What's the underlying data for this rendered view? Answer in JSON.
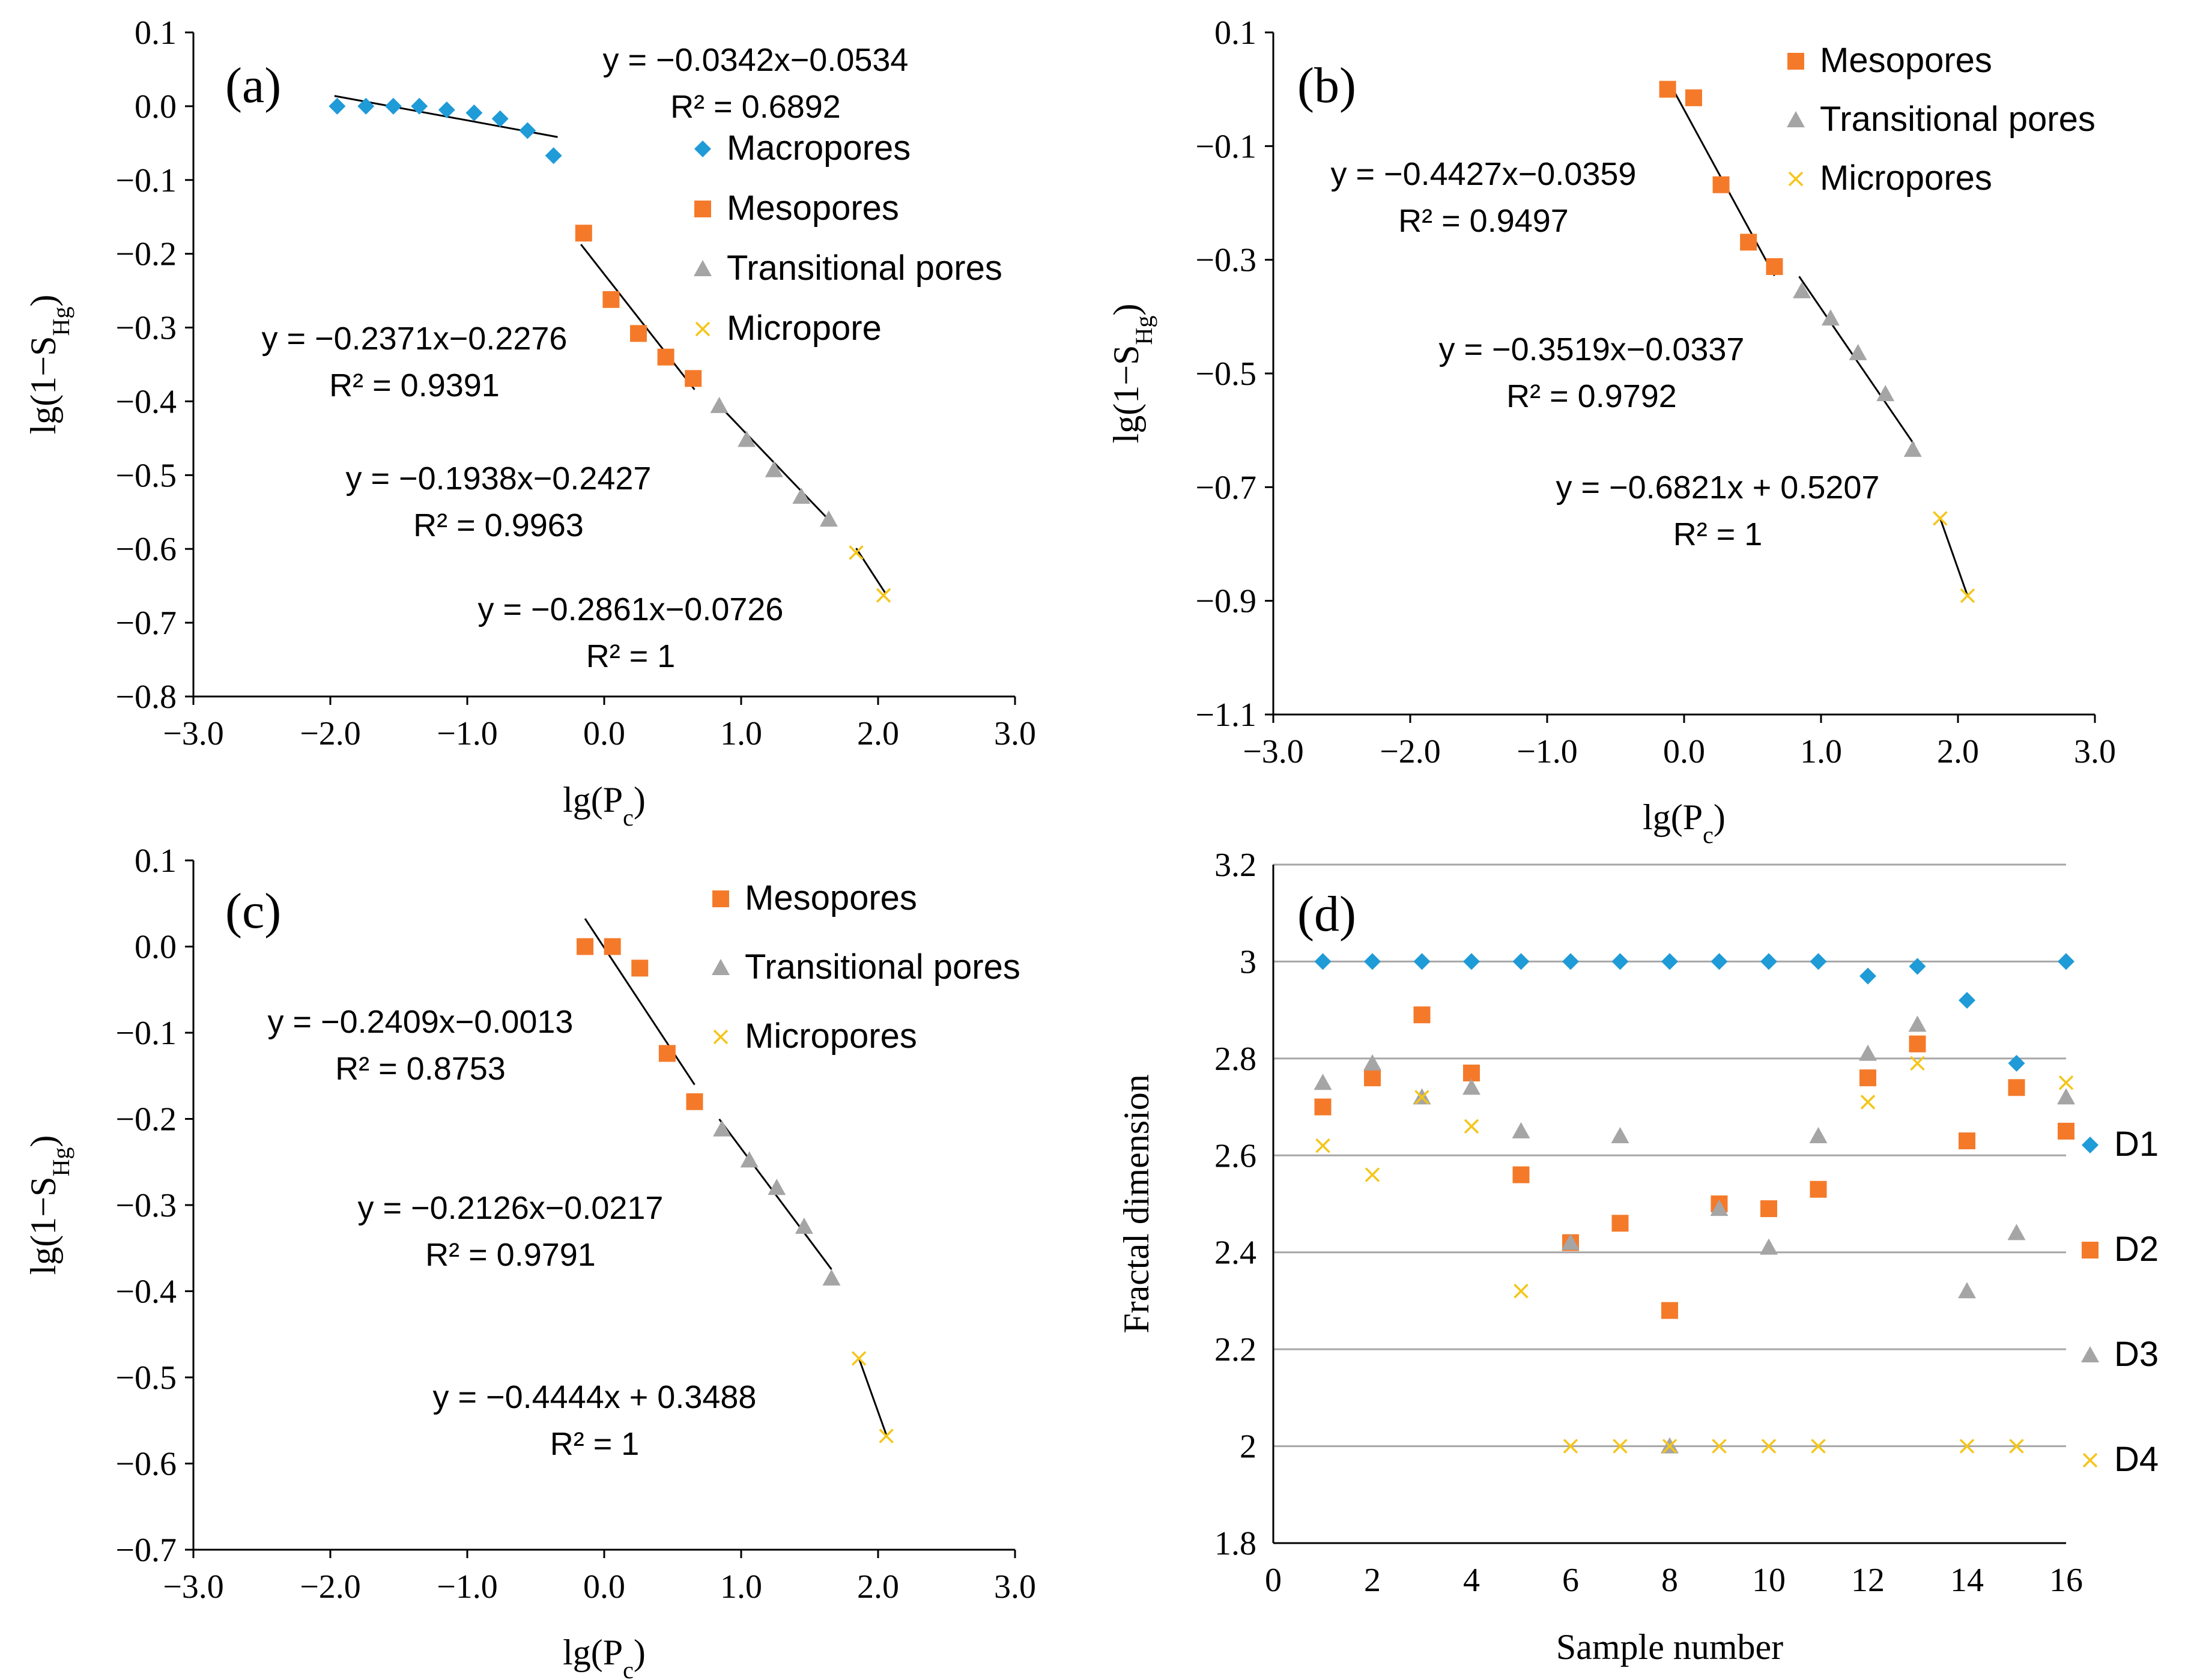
{
  "chart_data": [
    {
      "type": "scatter",
      "panel": "(a)",
      "xlabel": "lg(Pc)",
      "ylabel": "lg(1−SHg)",
      "xlim": [
        -3.0,
        3.0
      ],
      "ylim": [
        -0.8,
        0.1
      ],
      "xticks": [
        "−3.0",
        "−2.0",
        "−1.0",
        "0.0",
        "1.0",
        "2.0",
        "3.0"
      ],
      "yticks": [
        "0.1",
        "0.0",
        "−0.1",
        "−0.2",
        "−0.3",
        "−0.4",
        "−0.5",
        "−0.6",
        "−0.7",
        "−0.8"
      ],
      "series": [
        {
          "name": "Macropores",
          "color": "#1F9BD7",
          "marker": "diamond",
          "x": [
            -1.95,
            -1.74,
            -1.54,
            -1.35,
            -1.15,
            -0.95,
            -0.76,
            -0.56,
            -0.37
          ],
          "y": [
            0.0,
            0.0,
            0.0,
            0.0,
            -0.005,
            -0.009,
            -0.017,
            -0.033,
            -0.067
          ]
        },
        {
          "name": "Mesopores",
          "color": "#F47A2A",
          "marker": "square",
          "x": [
            -0.15,
            0.05,
            0.25,
            0.45,
            0.65
          ],
          "y": [
            -0.172,
            -0.262,
            -0.308,
            -0.34,
            -0.369
          ]
        },
        {
          "name": "Transitional pores",
          "color": "#A5A5A5",
          "marker": "triangle",
          "x": [
            0.84,
            1.04,
            1.24,
            1.44,
            1.64
          ],
          "y": [
            -0.406,
            -0.452,
            -0.493,
            -0.529,
            -0.56
          ]
        },
        {
          "name": "Micropore",
          "color": "#F5C518",
          "marker": "x",
          "x": [
            1.84,
            2.04
          ],
          "y": [
            -0.605,
            -0.663
          ]
        }
      ],
      "fits": [
        {
          "slope": -0.0342,
          "intercept": -0.0534,
          "x": [
            -1.97,
            -0.34
          ],
          "equation": "y = −0.0342x−0.0534",
          "r2": "R² = 0.6892"
        },
        {
          "slope": -0.2371,
          "intercept": -0.2276,
          "x": [
            -0.17,
            0.66
          ],
          "equation": "y = −0.2371x−0.2276",
          "r2": "R² = 0.9391"
        },
        {
          "slope": -0.1938,
          "intercept": -0.2427,
          "x": [
            0.82,
            1.66
          ],
          "equation": "y = −0.1938x−0.2427",
          "r2": "R² = 0.9963"
        },
        {
          "slope": -0.2861,
          "intercept": -0.0726,
          "x": [
            1.84,
            2.05
          ],
          "equation": "y = −0.2861x−0.0726",
          "r2": "R² = 1"
        }
      ]
    },
    {
      "type": "scatter",
      "panel": "(b)",
      "xlabel": "lg(Pc)",
      "ylabel": "lg(1−SHg)",
      "xlim": [
        -3.0,
        3.0
      ],
      "ylim": [
        -1.1,
        0.1
      ],
      "xticks": [
        "−3.0",
        "−2.0",
        "−1.0",
        "0.0",
        "1.0",
        "2.0",
        "3.0"
      ],
      "yticks": [
        "0.1",
        "−0.1",
        "−0.3",
        "−0.5",
        "−0.7",
        "−0.9",
        "−1.1"
      ],
      "series": [
        {
          "name": "Mesopores",
          "color": "#F47A2A",
          "marker": "square",
          "x": [
            -0.12,
            0.07,
            0.27,
            0.47,
            0.66
          ],
          "y": [
            0.0,
            -0.015,
            -0.168,
            -0.269,
            -0.312
          ]
        },
        {
          "name": "Transitional pores",
          "color": "#A5A5A5",
          "marker": "triangle",
          "x": [
            0.86,
            1.07,
            1.27,
            1.47,
            1.67
          ],
          "y": [
            -0.355,
            -0.403,
            -0.464,
            -0.536,
            -0.634
          ]
        },
        {
          "name": "Micropores",
          "color": "#F5C518",
          "marker": "x",
          "x": [
            1.87,
            2.07
          ],
          "y": [
            -0.755,
            -0.891
          ]
        }
      ],
      "fits": [
        {
          "slope": -0.4427,
          "intercept": -0.0359,
          "x": [
            -0.1,
            0.66
          ],
          "equation": "y = −0.4427x−0.0359",
          "r2": "R² = 0.9497"
        },
        {
          "slope": -0.3519,
          "intercept": -0.0337,
          "x": [
            0.84,
            1.68
          ],
          "equation": "y = −0.3519x−0.0337",
          "r2": "R² = 0.9792"
        },
        {
          "slope": -0.6821,
          "intercept": 0.5207,
          "x": [
            1.87,
            2.07
          ],
          "equation": "y = −0.6821x + 0.5207",
          "r2": "R² = 1"
        }
      ]
    },
    {
      "type": "scatter",
      "panel": "(c)",
      "xlabel": "lg(Pc)",
      "ylabel": "lg(1−SHg)",
      "xlim": [
        -3.0,
        3.0
      ],
      "ylim": [
        -0.7,
        0.1
      ],
      "xticks": [
        "−3.0",
        "−2.0",
        "−1.0",
        "0.0",
        "1.0",
        "2.0",
        "3.0"
      ],
      "yticks": [
        "0.1",
        "0.0",
        "−0.1",
        "−0.2",
        "−0.3",
        "−0.4",
        "−0.5",
        "−0.6",
        "−0.7"
      ],
      "series": [
        {
          "name": "Mesopores",
          "color": "#F47A2A",
          "marker": "square",
          "x": [
            -0.14,
            0.06,
            0.26,
            0.46,
            0.66
          ],
          "y": [
            0.0,
            0.0,
            -0.025,
            -0.124,
            -0.18
          ]
        },
        {
          "name": "Transitional pores",
          "color": "#A5A5A5",
          "marker": "triangle",
          "x": [
            0.86,
            1.06,
            1.26,
            1.46,
            1.66
          ],
          "y": [
            -0.212,
            -0.248,
            -0.28,
            -0.325,
            -0.385
          ]
        },
        {
          "name": "Micropores",
          "color": "#F5C518",
          "marker": "x",
          "x": [
            1.86,
            2.06
          ],
          "y": [
            -0.478,
            -0.568
          ]
        }
      ],
      "fits": [
        {
          "slope": -0.2409,
          "intercept": -0.0013,
          "x": [
            -0.14,
            0.66
          ],
          "equation": "y = −0.2409x−0.0013",
          "r2": "R² = 0.8753"
        },
        {
          "slope": -0.2126,
          "intercept": -0.0217,
          "x": [
            0.84,
            1.66
          ],
          "equation": "y = −0.2126x−0.0217",
          "r2": "R² = 0.9791"
        },
        {
          "slope": -0.4444,
          "intercept": 0.3488,
          "x": [
            1.86,
            2.06
          ],
          "equation": "y = −0.4444x + 0.3488",
          "r2": "R² = 1"
        }
      ]
    },
    {
      "type": "scatter",
      "panel": "(d)",
      "xlabel": "Sample number",
      "ylabel": "Fractal dimension",
      "xlim": [
        0,
        16
      ],
      "ylim": [
        1.8,
        3.2
      ],
      "xticks": [
        "0",
        "2",
        "4",
        "6",
        "8",
        "10",
        "12",
        "14",
        "16"
      ],
      "yticks": [
        "3.2",
        "3",
        "2.8",
        "2.6",
        "2.4",
        "2.2",
        "2",
        "1.8"
      ],
      "grid": true,
      "series": [
        {
          "name": "D1",
          "color": "#1F9BD7",
          "marker": "diamond",
          "x": [
            1,
            2,
            3,
            4,
            5,
            6,
            7,
            8,
            9,
            10,
            11,
            12,
            13,
            14,
            15,
            16
          ],
          "y": [
            3.0,
            3.0,
            3.0,
            3.0,
            3.0,
            3.0,
            3.0,
            3.0,
            3.0,
            3.0,
            3.0,
            2.97,
            2.99,
            2.92,
            2.79,
            3.0
          ]
        },
        {
          "name": "D2",
          "color": "#F47A2A",
          "marker": "square",
          "x": [
            1,
            2,
            3,
            4,
            5,
            6,
            7,
            8,
            9,
            10,
            11,
            12,
            13,
            14,
            15,
            16
          ],
          "y": [
            2.7,
            2.76,
            2.89,
            2.77,
            2.56,
            2.42,
            2.46,
            2.28,
            2.5,
            2.49,
            2.53,
            2.76,
            2.83,
            2.63,
            2.74,
            2.65
          ]
        },
        {
          "name": "D3",
          "color": "#A5A5A5",
          "marker": "triangle",
          "x": [
            1,
            2,
            3,
            4,
            5,
            6,
            7,
            8,
            9,
            10,
            11,
            12,
            13,
            14,
            15,
            16
          ],
          "y": [
            2.75,
            2.79,
            2.72,
            2.74,
            2.65,
            2.42,
            2.64,
            2.0,
            2.49,
            2.41,
            2.64,
            2.81,
            2.87,
            2.32,
            2.44,
            2.72
          ]
        },
        {
          "name": "D4",
          "color": "#F5C518",
          "marker": "x",
          "x": [
            1,
            2,
            3,
            4,
            5,
            6,
            7,
            8,
            9,
            10,
            11,
            12,
            13,
            14,
            15,
            16
          ],
          "y": [
            2.62,
            2.56,
            2.72,
            2.66,
            2.32,
            2.0,
            2.0,
            2.0,
            2.0,
            2.0,
            2.0,
            2.71,
            2.79,
            2.0,
            2.0,
            2.75
          ]
        }
      ]
    }
  ]
}
